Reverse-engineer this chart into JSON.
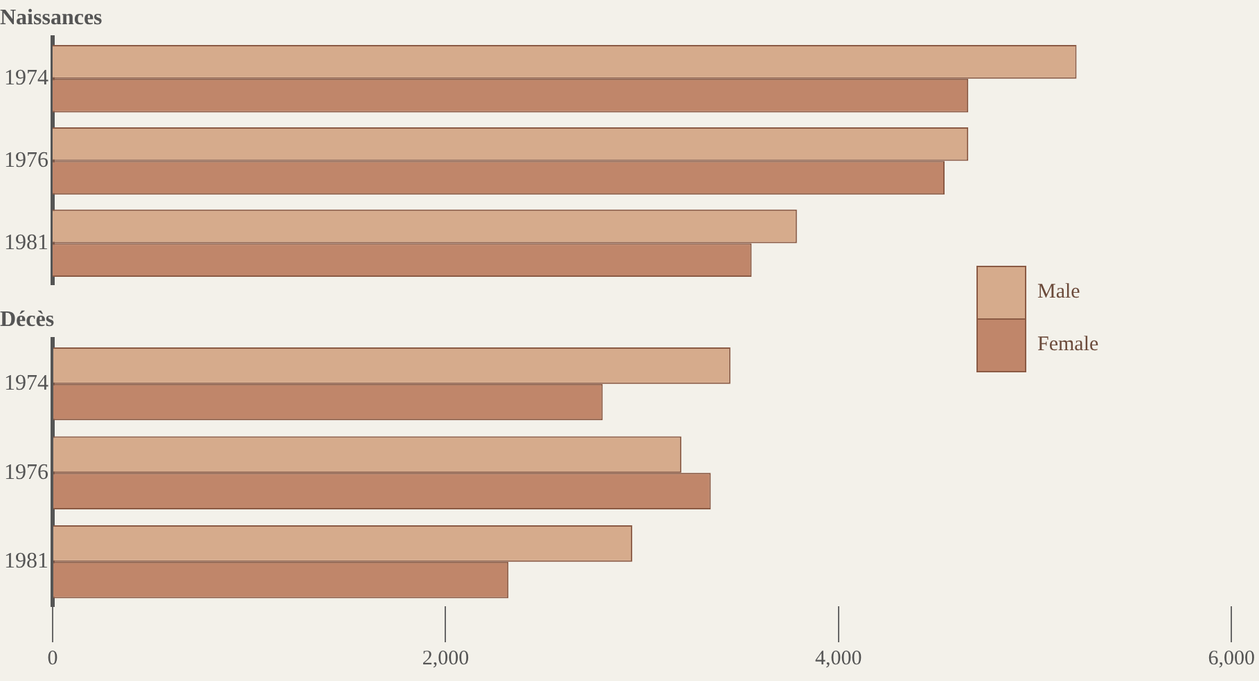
{
  "chart_data": [
    {
      "type": "bar",
      "title": "Naissances",
      "orientation": "horizontal",
      "categories": [
        "1974",
        "1976",
        "1981"
      ],
      "series": [
        {
          "color": "#d6ab8c",
          "values": [
            5200,
            4650,
            3780
          ]
        },
        {
          "color": "#c0866a",
          "values": [
            4650,
            4530,
            3550
          ]
        }
      ],
      "xlim": [
        0,
        6000
      ],
      "tick_labels": "y",
      "grid": false,
      "legend": false
    },
    {
      "type": "bar",
      "title": "Décès",
      "orientation": "horizontal",
      "categories": [
        "1974",
        "1976",
        "1981"
      ],
      "series": [
        {
          "name": "Male",
          "color": "#d6ab8c",
          "values": [
            3450,
            3200,
            2950
          ]
        },
        {
          "name": "Female",
          "color": "#c0866a",
          "values": [
            2800,
            3350,
            2320
          ]
        }
      ],
      "xlim": [
        0,
        6000
      ],
      "xticks": [
        0,
        {
          "value": 2000,
          "label": "2,000"
        },
        {
          "value": 4000,
          "label": "4,000"
        },
        {
          "value": 6000,
          "label": "6,000"
        }
      ],
      "grid": false,
      "legend": "top right"
    }
  ]
}
